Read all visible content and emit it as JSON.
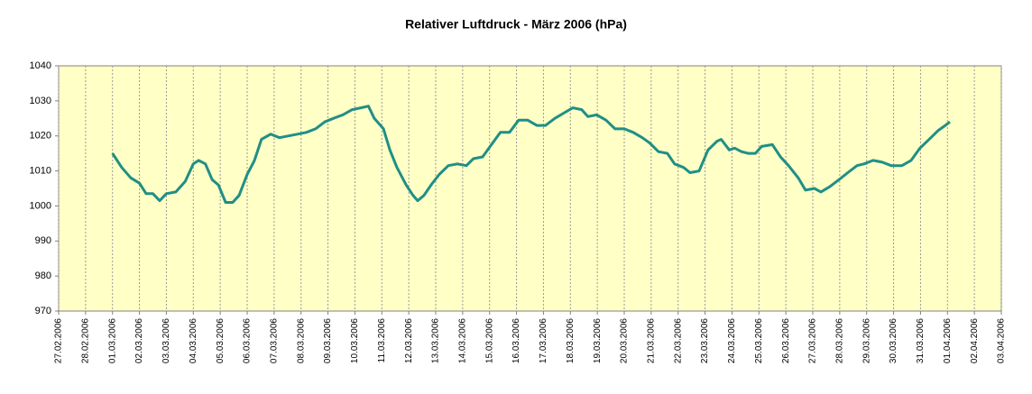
{
  "chart_data": {
    "type": "line",
    "title": "Relativer Luftdruck - März 2006 (hPa)",
    "xlim": [
      0,
      35
    ],
    "xticks": [
      {
        "value": 0,
        "label": "27.02.2006"
      },
      {
        "value": 1,
        "label": "28.02.2006"
      },
      {
        "value": 2,
        "label": "01.03.2006"
      },
      {
        "value": 3,
        "label": "02.03.2006"
      },
      {
        "value": 4,
        "label": "03.03.2006"
      },
      {
        "value": 5,
        "label": "04.03.2006"
      },
      {
        "value": 6,
        "label": "05.03.2006"
      },
      {
        "value": 7,
        "label": "06.03.2006"
      },
      {
        "value": 8,
        "label": "07.03.2006"
      },
      {
        "value": 9,
        "label": "08.03.2006"
      },
      {
        "value": 10,
        "label": "09.03.2006"
      },
      {
        "value": 11,
        "label": "10.03.2006"
      },
      {
        "value": 12,
        "label": "11.03.2006"
      },
      {
        "value": 13,
        "label": "12.03.2006"
      },
      {
        "value": 14,
        "label": "13.03.2006"
      },
      {
        "value": 15,
        "label": "14.03.2006"
      },
      {
        "value": 16,
        "label": "15.03.2006"
      },
      {
        "value": 17,
        "label": "16.03.2006"
      },
      {
        "value": 18,
        "label": "17.03.2006"
      },
      {
        "value": 19,
        "label": "18.03.2006"
      },
      {
        "value": 20,
        "label": "19.03.2006"
      },
      {
        "value": 21,
        "label": "20.03.2006"
      },
      {
        "value": 22,
        "label": "21.03.2006"
      },
      {
        "value": 23,
        "label": "22.03.2006"
      },
      {
        "value": 24,
        "label": "23.03.2006"
      },
      {
        "value": 25,
        "label": "24.03.2006"
      },
      {
        "value": 26,
        "label": "25.03.2006"
      },
      {
        "value": 27,
        "label": "26.03.2006"
      },
      {
        "value": 28,
        "label": "27.03.2006"
      },
      {
        "value": 29,
        "label": "28.03.2006"
      },
      {
        "value": 30,
        "label": "29.03.2006"
      },
      {
        "value": 31,
        "label": "30.03.2006"
      },
      {
        "value": 32,
        "label": "31.03.2006"
      },
      {
        "value": 33,
        "label": "01.04.2006"
      },
      {
        "value": 34,
        "label": "02.04.2006"
      },
      {
        "value": 35,
        "label": "03.04.2006"
      }
    ],
    "ylim": [
      970,
      1040
    ],
    "yticks": [
      970,
      980,
      990,
      1000,
      1010,
      1020,
      1030,
      1040
    ],
    "grid": true,
    "background": "#ffffc6",
    "series": [
      {
        "color": "#1f8f86",
        "x": [
          2.0,
          2.34,
          2.68,
          3.0,
          3.25,
          3.5,
          3.75,
          4.0,
          4.35,
          4.7,
          5.0,
          5.2,
          5.45,
          5.7,
          5.93,
          6.2,
          6.46,
          6.7,
          7.0,
          7.27,
          7.53,
          7.87,
          8.2,
          8.54,
          8.87,
          9.2,
          9.54,
          9.88,
          10.2,
          10.55,
          10.9,
          11.22,
          11.5,
          11.72,
          12.06,
          12.3,
          12.56,
          12.9,
          13.16,
          13.33,
          13.56,
          13.83,
          14.13,
          14.47,
          14.8,
          15.14,
          15.4,
          15.74,
          16.07,
          16.4,
          16.74,
          17.08,
          17.41,
          17.75,
          18.08,
          18.42,
          18.75,
          19.09,
          19.42,
          19.65,
          19.98,
          20.32,
          20.66,
          21.0,
          21.33,
          21.67,
          21.94,
          22.27,
          22.6,
          22.87,
          23.2,
          23.44,
          23.78,
          24.11,
          24.45,
          24.6,
          24.9,
          25.1,
          25.35,
          25.6,
          25.87,
          26.1,
          26.5,
          26.8,
          27.1,
          27.46,
          27.73,
          28.06,
          28.3,
          28.63,
          28.97,
          29.3,
          29.64,
          29.9,
          30.24,
          30.58,
          30.91,
          31.31,
          31.65,
          31.98,
          32.32,
          32.65,
          32.92,
          33.09
        ],
        "values": [
          1015,
          1011,
          1008,
          1006.5,
          1003.5,
          1003.5,
          1001.5,
          1003.5,
          1004,
          1007,
          1012,
          1013,
          1012,
          1007.5,
          1006,
          1001,
          1001,
          1003,
          1009,
          1013,
          1019,
          1020.5,
          1019.5,
          1020,
          1020.5,
          1021,
          1022,
          1024,
          1025,
          1026,
          1027.5,
          1028,
          1028.5,
          1025,
          1022,
          1016,
          1011,
          1006,
          1003,
          1001.5,
          1003,
          1006,
          1009,
          1011.5,
          1012,
          1011.5,
          1013.5,
          1014,
          1017.5,
          1021,
          1021,
          1024.5,
          1024.5,
          1023,
          1023,
          1025,
          1026.5,
          1028,
          1027.5,
          1025.5,
          1026,
          1024.5,
          1022,
          1022,
          1021,
          1019.5,
          1018,
          1015.5,
          1015,
          1012,
          1011,
          1009.5,
          1010,
          1016,
          1018.5,
          1019,
          1016,
          1016.5,
          1015.5,
          1015,
          1015,
          1017,
          1017.5,
          1014,
          1011.5,
          1008,
          1004.5,
          1005,
          1004,
          1005.5,
          1007.5,
          1009.5,
          1011.5,
          1012,
          1013,
          1012.5,
          1011.5,
          1011.5,
          1013,
          1016.5,
          1019,
          1021.5,
          1023,
          1024
        ]
      }
    ]
  }
}
